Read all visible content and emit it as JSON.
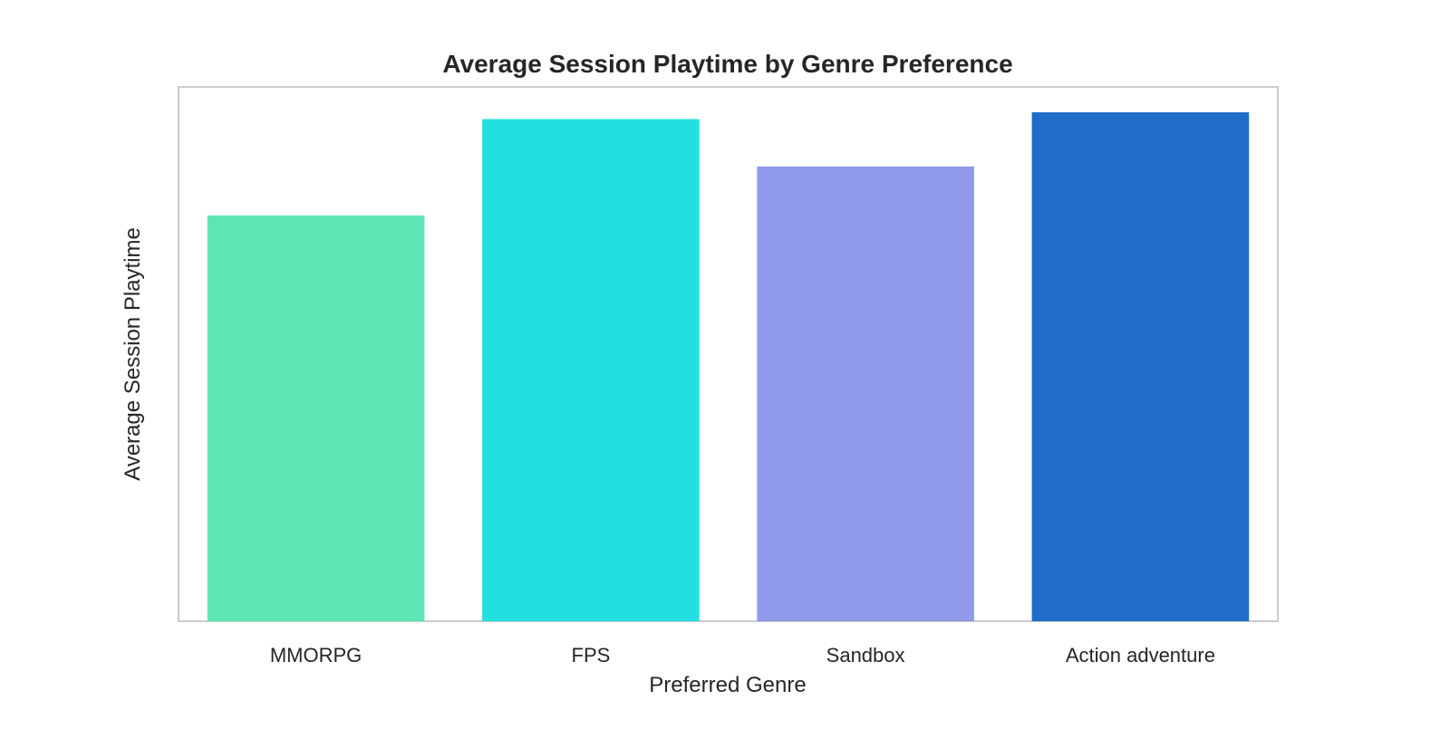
{
  "chart_data": {
    "type": "bar",
    "title": "Average Session Playtime by Genre Preference",
    "xlabel": "Preferred Genre",
    "ylabel": "Average Session Playtime",
    "categories": [
      "MMORPG",
      "FPS",
      "Sandbox",
      "Action adventure"
    ],
    "values": [
      24.0,
      29.7,
      26.9,
      30.1
    ],
    "ylim": [
      0,
      31.6
    ],
    "colors": [
      "#5ee6b4",
      "#22e0e0",
      "#9199ea",
      "#1f6cc9"
    ],
    "grid": false,
    "legend": "none"
  }
}
